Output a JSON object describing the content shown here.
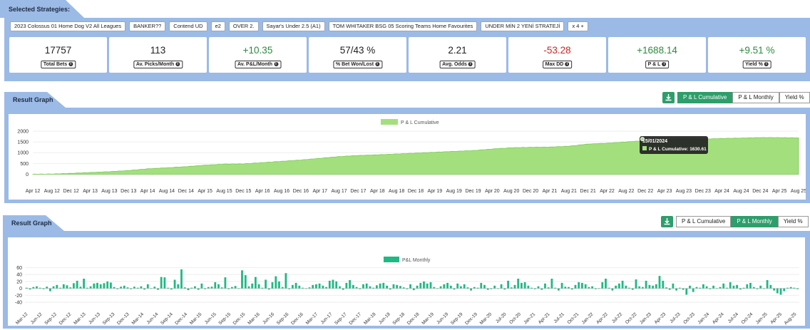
{
  "strategies": {
    "title": "Selected Strategies:",
    "chips": [
      "2023 Colossus 01 Home Dog V2 All Leagues",
      "BANKER??",
      "Contend UD",
      "e2",
      "OVER 2.",
      "Sayar's Under 2.5 (A1)",
      "TOM WHITAKER BSG 05 Scoring Teams Home Favourites",
      "UNDER MİN 2 YENİ STRATEJİ",
      "x 4 +"
    ]
  },
  "stats": [
    {
      "value": "17757",
      "label": "Total Bets",
      "tone": ""
    },
    {
      "value": "113",
      "label": "Av. Picks/Month",
      "tone": ""
    },
    {
      "value": "+10.35",
      "label": "Av. P&L/Month",
      "tone": "pos"
    },
    {
      "value": "57/43 %",
      "label": "% Bet Won/Lost",
      "tone": ""
    },
    {
      "value": "2.21",
      "label": "Avg. Odds",
      "tone": ""
    },
    {
      "value": "-53.28",
      "label": "Max DD",
      "tone": "neg"
    },
    {
      "value": "+1688.14",
      "label": "P & L",
      "tone": "pos"
    },
    {
      "value": "+9.51 %",
      "label": "Yield %",
      "tone": "pos"
    }
  ],
  "graph1": {
    "title": "Result Graph",
    "buttons": [
      "P & L Cumulative",
      "P & L Monthly",
      "Yield %"
    ],
    "active": 0,
    "tooltip": {
      "date": "15/01/2024",
      "text": "P & L Cumulative: 1630.61"
    }
  },
  "graph2": {
    "title": "Result Graph",
    "buttons": [
      "P & L Cumulative",
      "P & L Monthly",
      "Yield %"
    ],
    "active": 1
  },
  "colors": {
    "panel": "#9bbae6",
    "accent": "#2e9e6b",
    "area": "#a3e07d",
    "bars": "#1fb985"
  },
  "chart_data": [
    {
      "type": "area",
      "legend": "P & L Cumulative",
      "yticks": [
        0,
        500,
        1000,
        1500,
        2000
      ],
      "ylim": [
        -250,
        2000
      ],
      "x": [
        "Apr 12",
        "Aug 12",
        "Dec 12",
        "Apr 13",
        "Aug 13",
        "Dec 13",
        "Apr 14",
        "Aug 14",
        "Dec 14",
        "Apr 15",
        "Aug 15",
        "Dec 15",
        "Apr 16",
        "Aug 16",
        "Dec 16",
        "Apr 17",
        "Aug 17",
        "Dec 17",
        "Apr 18",
        "Aug 18",
        "Dec 18",
        "Apr 19",
        "Aug 19",
        "Dec 19",
        "Apr 20",
        "Aug 20",
        "Dec 20",
        "Apr 21",
        "Aug 21",
        "Dec 21",
        "Apr 22",
        "Aug 22",
        "Dec 22",
        "Apr 23",
        "Aug 23",
        "Dec 23",
        "Apr 24",
        "Aug 24",
        "Dec 24",
        "Apr 25",
        "Aug 25"
      ],
      "values": [
        0,
        10,
        40,
        80,
        120,
        170,
        250,
        300,
        350,
        420,
        470,
        480,
        540,
        600,
        660,
        740,
        820,
        870,
        900,
        940,
        980,
        1020,
        1060,
        1100,
        1170,
        1230,
        1250,
        1260,
        1300,
        1400,
        1440,
        1500,
        1560,
        1620,
        1640,
        1630,
        1660,
        1680,
        1700,
        1700,
        1688
      ]
    },
    {
      "type": "bar",
      "legend": "P&L Monthly",
      "yticks": [
        -40,
        -20,
        0,
        20,
        40,
        60
      ],
      "ylim": [
        -50,
        65
      ],
      "tick_labels": [
        "Mar-12",
        "Jun-12",
        "Sep-12",
        "Dec-12",
        "Mar-13",
        "Jun-13",
        "Sep-13",
        "Dec-13",
        "Mar-14",
        "Jun-14",
        "Sep-14",
        "Dec-14",
        "Mar-15",
        "Jun-15",
        "Sep-15",
        "Dec-15",
        "Mar-16",
        "Jun-16",
        "Sep-16",
        "Dec-16",
        "Mar-17",
        "Jun-17",
        "Sep-17",
        "Dec-17",
        "Mar-18",
        "Jun-18",
        "Sep-18",
        "Dec-18",
        "Mar-19",
        "Jun-19",
        "Sep-19",
        "Dec-19",
        "Mar-20",
        "Jul-20",
        "Oct-20",
        "Jan-21",
        "Apr-21",
        "Jul-21",
        "Oct-21",
        "Jan-22",
        "Apr-22",
        "Jul-22",
        "Oct-22",
        "Jan-23",
        "Apr-23",
        "Jul-23",
        "Oct-23",
        "Jan-24",
        "Apr-24",
        "Jul-24",
        "Oct-24",
        "Jan-25",
        "Apr-25",
        "Aug-25"
      ],
      "values": [
        2,
        -3,
        4,
        6,
        2,
        -2,
        5,
        -8,
        6,
        10,
        2,
        12,
        9,
        3,
        15,
        22,
        5,
        28,
        2,
        6,
        14,
        16,
        12,
        15,
        20,
        17,
        4,
        -2,
        5,
        8,
        3,
        -2,
        5,
        2,
        6,
        -3,
        12,
        -1,
        5,
        -4,
        33,
        32,
        2,
        -3,
        25,
        12,
        55,
        3,
        -5,
        2,
        6,
        -4,
        14,
        -2,
        4,
        5,
        18,
        12,
        3,
        32,
        -2,
        4,
        7,
        -1,
        52,
        38,
        6,
        14,
        33,
        12,
        2,
        25,
        -3,
        18,
        35,
        20,
        4,
        44,
        -2,
        10,
        16,
        8,
        2,
        -1,
        3,
        10,
        12,
        14,
        8,
        4,
        22,
        25,
        20,
        6,
        -4,
        16,
        24,
        10,
        4,
        -2,
        12,
        14,
        6,
        2,
        9,
        14,
        16,
        8,
        -3,
        12,
        10,
        7,
        3,
        -2,
        12,
        -5,
        8,
        16,
        20,
        14,
        18,
        4,
        -1,
        6,
        12,
        16,
        8,
        -3,
        14,
        6,
        12,
        3,
        -6,
        4,
        2,
        16,
        10,
        -4,
        -2,
        8,
        -1,
        12,
        -3,
        22,
        3,
        10,
        28,
        16,
        18,
        8,
        2,
        -2,
        6,
        -4,
        14,
        3,
        28,
        2,
        -6,
        16,
        5,
        4,
        -3,
        10,
        18,
        16,
        12,
        4,
        6,
        -2,
        -1,
        18,
        28,
        2,
        -6,
        8,
        14,
        22,
        8,
        2,
        -4,
        26,
        6,
        4,
        22,
        10,
        8,
        12,
        36,
        22,
        3,
        -4,
        14,
        -6,
        2,
        -4,
        -18,
        8,
        -10,
        4,
        2,
        12,
        6,
        -2,
        8,
        -1,
        4,
        14,
        2,
        18,
        8,
        10,
        -3,
        2,
        12,
        16,
        4,
        -2,
        8,
        -1,
        24,
        10,
        -6,
        -14,
        -18,
        -8,
        2,
        4,
        2,
        -2
      ]
    }
  ]
}
